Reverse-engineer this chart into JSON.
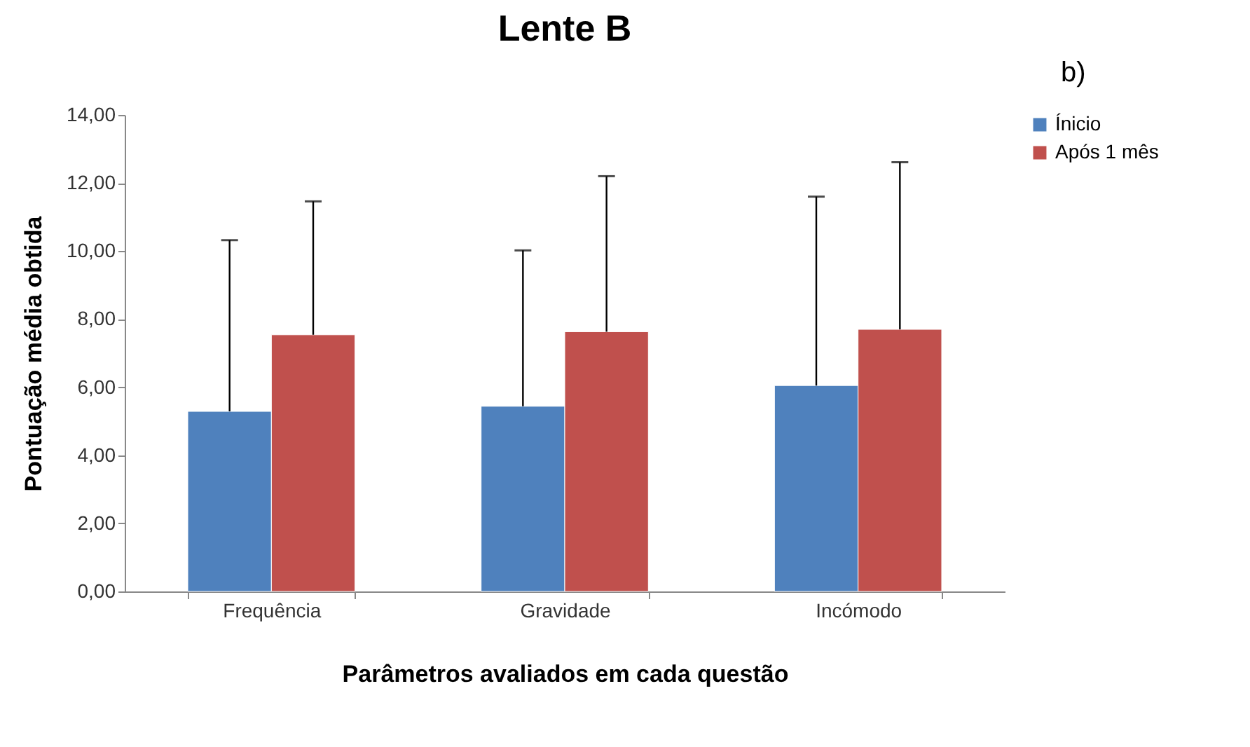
{
  "chart_data": {
    "type": "bar",
    "title": "Lente B",
    "xlabel": "Parâmetros avaliados em cada questão",
    "ylabel": "Pontuação média obtida",
    "categories": [
      "Frequência",
      "Gravidade",
      "Incómodo"
    ],
    "series": [
      {
        "name": "Ínicio",
        "color": "#4f81bd",
        "values": [
          5.29,
          5.44,
          6.05
        ],
        "errors": [
          [
            5.29,
            10.32
          ],
          [
            5.44,
            10.02
          ],
          [
            6.05,
            11.6
          ]
        ]
      },
      {
        "name": "Após 1 mês",
        "color": "#c0504d",
        "values": [
          7.54,
          7.63,
          7.7
        ],
        "errors": [
          [
            7.54,
            11.46
          ],
          [
            7.63,
            12.2
          ],
          [
            7.7,
            12.61
          ]
        ]
      }
    ],
    "ylim": [
      0,
      14
    ],
    "yticks": [
      {
        "value": 0,
        "label": "0,00"
      },
      {
        "value": 2,
        "label": "2,00"
      },
      {
        "value": 4,
        "label": "4,00"
      },
      {
        "value": 6,
        "label": "6,00"
      },
      {
        "value": 8,
        "label": "8,00"
      },
      {
        "value": 10,
        "label": "10,00"
      },
      {
        "value": 12,
        "label": "12,00"
      },
      {
        "value": 14,
        "label": "14,00"
      }
    ],
    "grid": false,
    "legend": "right",
    "annotations": [
      "b)"
    ]
  }
}
